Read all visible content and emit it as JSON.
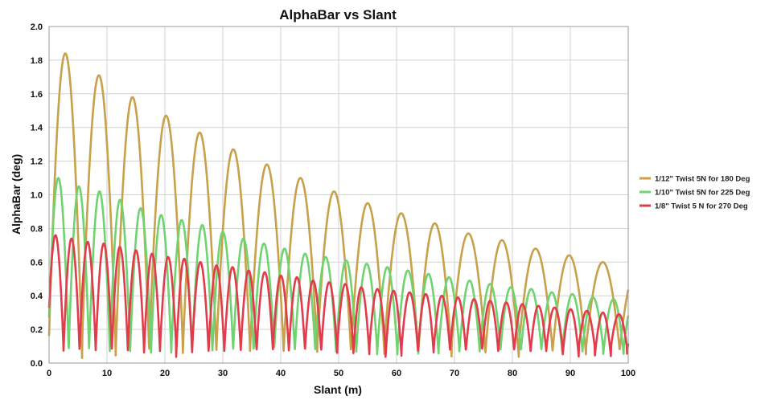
{
  "chart_data": {
    "type": "line",
    "title": "AlphaBar vs Slant",
    "xlabel": "Slant (m)",
    "ylabel": "AlphaBar (deg)",
    "xlim": [
      0,
      100
    ],
    "ylim": [
      0.0,
      2.0
    ],
    "x_ticks": [
      "0",
      "10",
      "20",
      "30",
      "40",
      "50",
      "60",
      "70",
      "80",
      "90",
      "100"
    ],
    "y_ticks": [
      "0.0",
      "0.2",
      "0.4",
      "0.6",
      "0.8",
      "1.0",
      "1.2",
      "1.4",
      "1.6",
      "1.8",
      "2.0"
    ],
    "grid": true,
    "legend_position": "right",
    "series": [
      {
        "name": "1/12\" Twist 5N for 180 Deg",
        "color": "#c8a14a",
        "period": 5.8,
        "first_peak_x": 2.8,
        "peaks": [
          1.84,
          1.71,
          1.58,
          1.47,
          1.37,
          1.27,
          1.18,
          1.1,
          1.02,
          0.95,
          0.89,
          0.83,
          0.77,
          0.73,
          0.68,
          0.64,
          0.6,
          0.56
        ]
      },
      {
        "name": "1/10\" Twist 5N for 225 Deg",
        "color": "#6fd46f",
        "period": 3.55,
        "first_peak_x": 1.6,
        "peaks": [
          1.1,
          1.05,
          1.02,
          0.97,
          0.92,
          0.88,
          0.85,
          0.82,
          0.78,
          0.74,
          0.71,
          0.68,
          0.65,
          0.63,
          0.61,
          0.59,
          0.57,
          0.55,
          0.53,
          0.51,
          0.49,
          0.47,
          0.45,
          0.44,
          0.42,
          0.41,
          0.39,
          0.38
        ]
      },
      {
        "name": "1/8\" Twist 5 N for 270 Deg",
        "color": "#e03c4c",
        "period": 2.78,
        "first_peak_x": 1.1,
        "peaks": [
          0.76,
          0.74,
          0.72,
          0.71,
          0.69,
          0.67,
          0.65,
          0.63,
          0.62,
          0.6,
          0.58,
          0.57,
          0.55,
          0.54,
          0.52,
          0.51,
          0.49,
          0.48,
          0.47,
          0.45,
          0.44,
          0.43,
          0.42,
          0.41,
          0.4,
          0.39,
          0.38,
          0.37,
          0.36,
          0.35,
          0.34,
          0.33,
          0.32,
          0.31,
          0.3,
          0.29
        ]
      }
    ]
  }
}
